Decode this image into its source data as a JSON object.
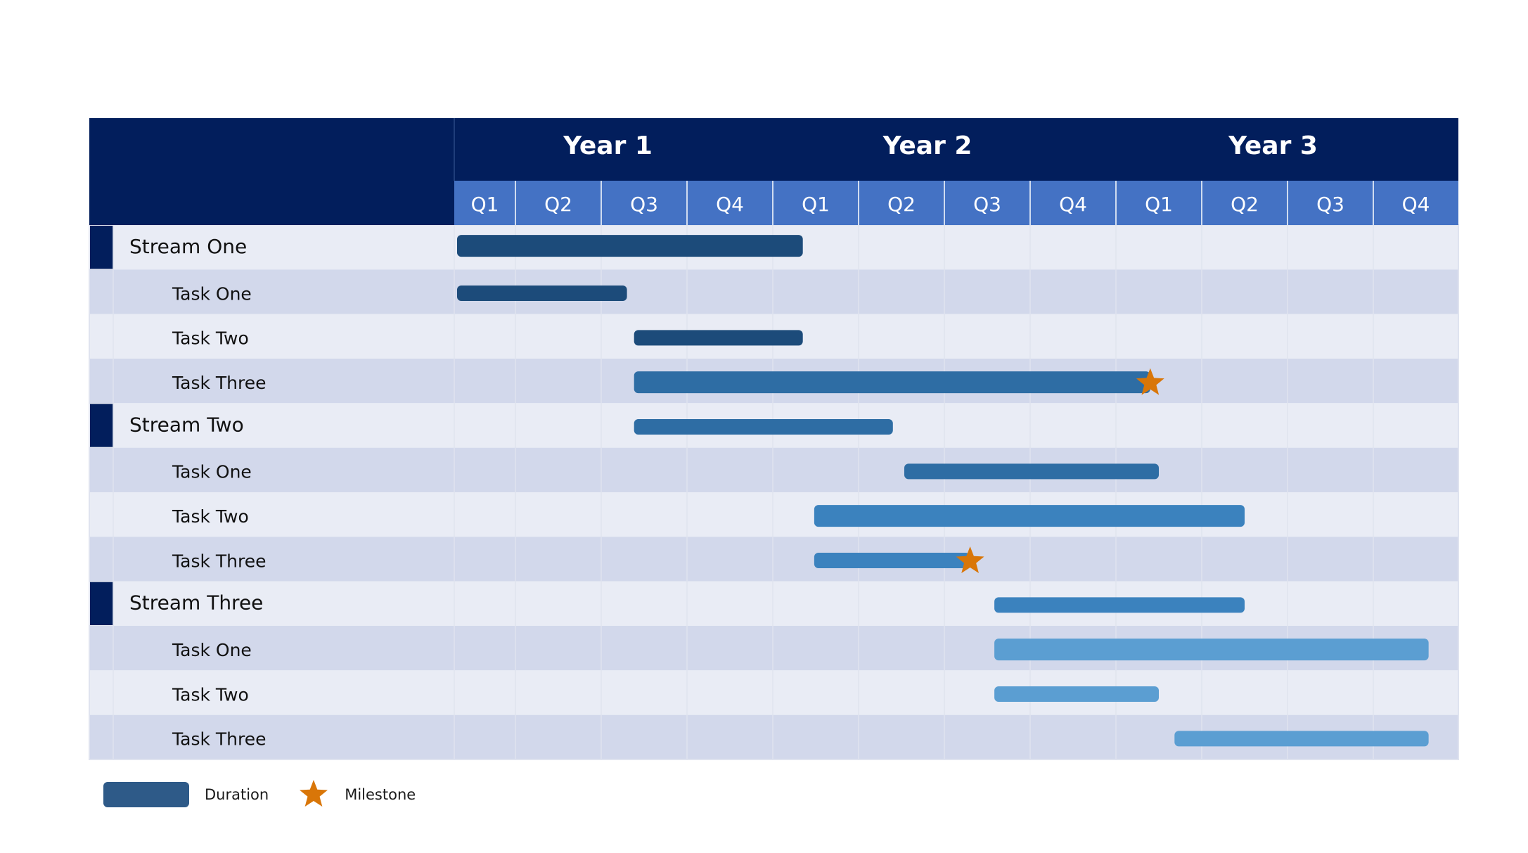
{
  "colors": {
    "header_dark": "#021e5c",
    "quarter_header": "#4472c4",
    "quarter_text": "#ffffff",
    "row_light": "#e9ecf5",
    "row_dark": "#d2d8eb",
    "grid_line": "#dfe3ef",
    "stream_marker": "#021e5c",
    "milestone": "#d97608",
    "duration_legend": "#2e5a88",
    "bar_shades": [
      "#1c4b7a",
      "#2e6da4",
      "#3b82be",
      "#5b9ed2"
    ]
  },
  "legend": {
    "duration_label": "Duration",
    "milestone_label": "Milestone"
  },
  "chart_data": {
    "type": "gantt",
    "title": "",
    "time_unit": "quarter",
    "years": [
      "Year 1",
      "Year 2",
      "Year 3"
    ],
    "quarters": [
      "Q1",
      "Q2",
      "Q3",
      "Q4",
      "Q1",
      "Q2",
      "Q3",
      "Q4",
      "Q1",
      "Q2",
      "Q3",
      "Q4"
    ],
    "rows": [
      {
        "label": "Stream One",
        "kind": "stream",
        "start": 0.0,
        "end": 4.35,
        "shade": 0
      },
      {
        "label": "Task One",
        "kind": "task",
        "start": 0.0,
        "end": 2.3,
        "shade": 0
      },
      {
        "label": "Task Two",
        "kind": "task",
        "start": 2.35,
        "end": 4.35,
        "shade": 0
      },
      {
        "label": "Task Three",
        "kind": "task",
        "start": 2.35,
        "end": 8.4,
        "shade": 1,
        "milestone": 8.4
      },
      {
        "label": "Stream Two",
        "kind": "stream",
        "start": 2.35,
        "end": 5.4,
        "shade": 1
      },
      {
        "label": "Task One",
        "kind": "task",
        "start": 5.5,
        "end": 8.5,
        "shade": 1
      },
      {
        "label": "Task Two",
        "kind": "task",
        "start": 4.45,
        "end": 9.5,
        "shade": 2
      },
      {
        "label": "Task Three",
        "kind": "task",
        "start": 4.45,
        "end": 6.3,
        "shade": 2,
        "milestone": 6.3
      },
      {
        "label": "Stream Three",
        "kind": "stream",
        "start": 6.55,
        "end": 9.5,
        "shade": 2
      },
      {
        "label": "Task One",
        "kind": "task",
        "start": 6.55,
        "end": 11.65,
        "shade": 3
      },
      {
        "label": "Task Two",
        "kind": "task",
        "start": 6.55,
        "end": 8.5,
        "shade": 3
      },
      {
        "label": "Task Three",
        "kind": "task",
        "start": 8.65,
        "end": 11.65,
        "shade": 3
      }
    ]
  }
}
